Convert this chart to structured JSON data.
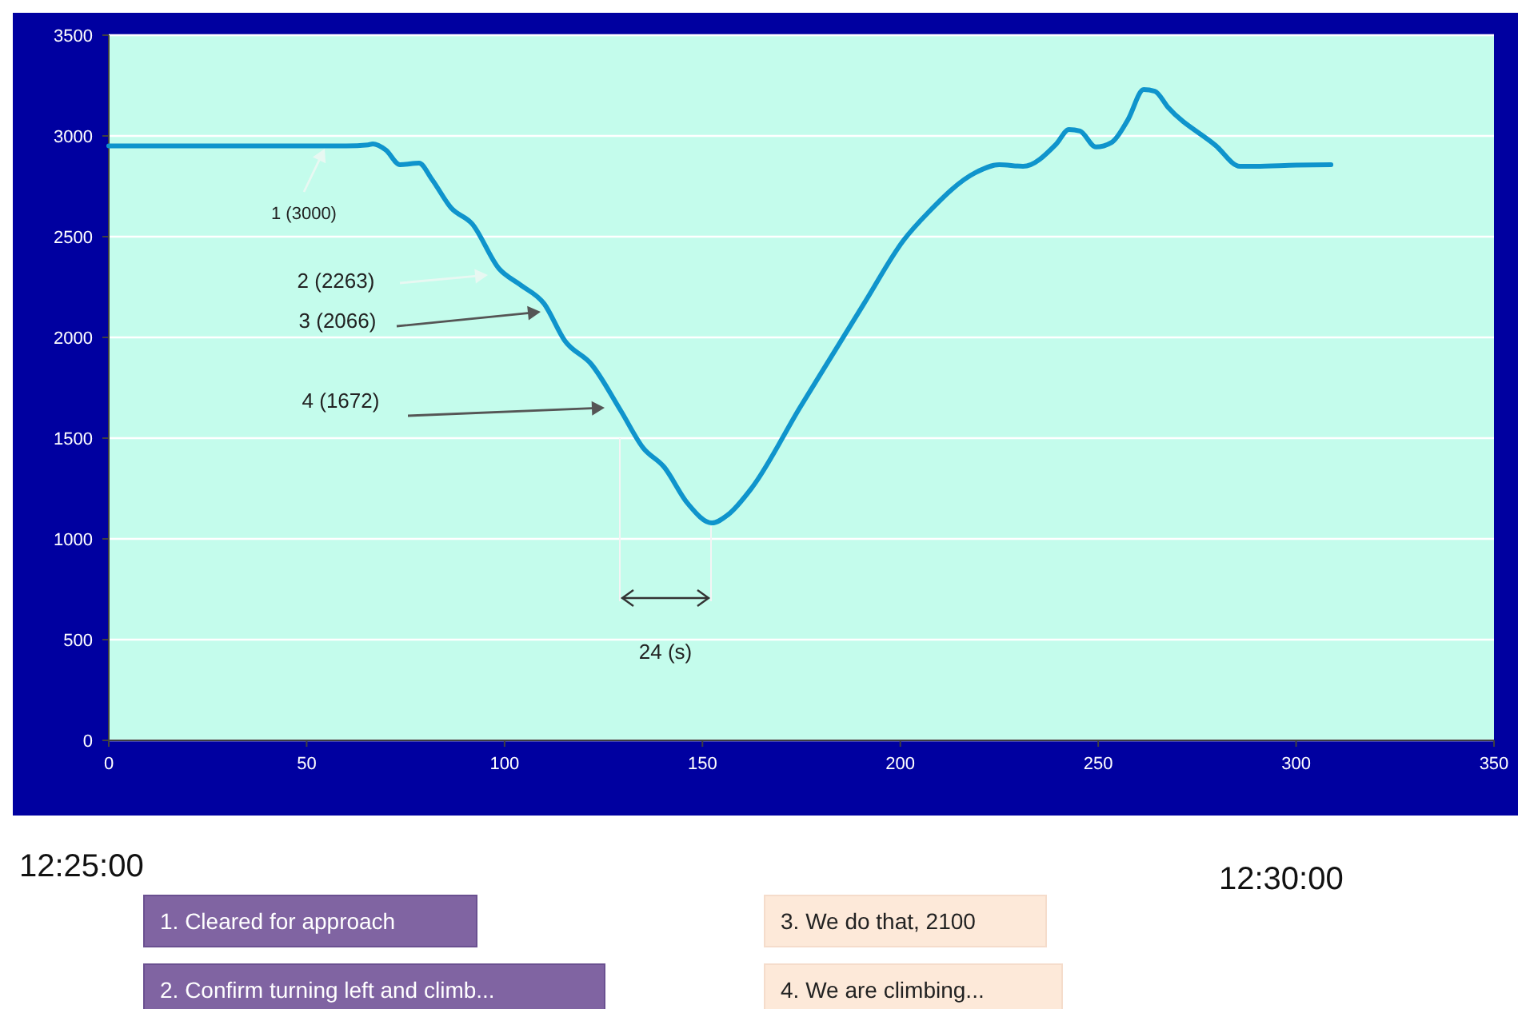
{
  "chart_data": {
    "type": "line",
    "xlim": [
      0,
      350
    ],
    "xticks": [
      0,
      50,
      100,
      150,
      200,
      250,
      300,
      350
    ],
    "ylim": [
      0,
      3500
    ],
    "yticks": [
      0,
      500,
      1000,
      1500,
      2000,
      2500,
      3000,
      3500
    ],
    "grid": "y",
    "marker": "none",
    "line_style": "solid",
    "series": [
      {
        "color": "#0f94cc",
        "x": [
          0,
          20,
          40,
          60,
          65.5,
          66.7,
          70,
          73.6,
          78.4,
          81.6,
          86.5,
          91.8,
          98.6,
          103.9,
          110,
          115.2,
          122,
          129.4,
          135,
          140.3,
          146.3,
          152.4,
          156.4,
          162.5,
          174.6,
          190.8,
          200.9,
          207,
          219,
          225,
          231,
          239.4,
          242.6,
          245.4,
          249.4,
          253.4,
          257.5,
          261.5,
          264.3,
          267.6,
          279.7,
          285.8,
          289.8,
          300,
          308.8
        ],
        "values": [
          2950,
          2950,
          2950,
          2950,
          2955,
          2960,
          2930,
          2857,
          2865,
          2786,
          2643,
          2564,
          2341,
          2262,
          2167,
          1984,
          1865,
          1635,
          1452,
          1357,
          1175,
          1079,
          1119,
          1254,
          1651,
          2167,
          2484,
          2619,
          2818,
          2857,
          2849,
          2960,
          3032,
          3024,
          2945,
          2968,
          3080,
          3230,
          3222,
          3143,
          2952,
          2849,
          2849,
          2855,
          2857
        ]
      }
    ],
    "annotations": [
      "1 (3000)",
      "2 (2263)",
      "3 (2066)",
      "4 (1672)",
      "24 (s)",
      "12:25:00",
      "12:30:00",
      "1. Cleared for approach",
      "2. Confirm turning left and climb...",
      "3. We do that, 2100",
      "4. We are climbing..."
    ]
  }
}
